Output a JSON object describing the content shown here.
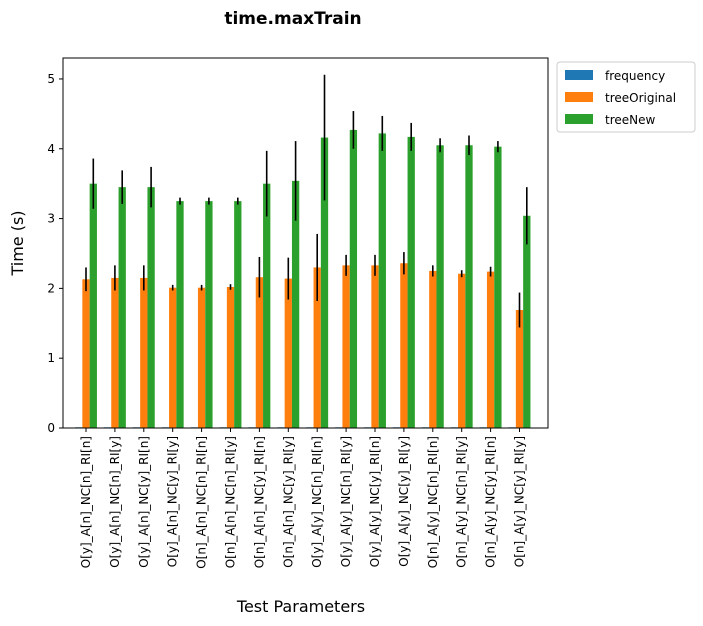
{
  "chart_data": {
    "type": "bar",
    "title": "time.maxTrain",
    "xlabel": "Test Parameters",
    "ylabel": "Time (s)",
    "ylim": [
      0,
      5.3
    ],
    "yticks": [
      0,
      1,
      2,
      3,
      4,
      5
    ],
    "grid": false,
    "legend_position": "outside-top-right",
    "categories": [
      "O[y]_A[n]_NC[n]_RI[n]",
      "O[y]_A[n]_NC[n]_RI[y]",
      "O[y]_A[n]_NC[y]_RI[n]",
      "O[y]_A[n]_NC[y]_RI[y]",
      "O[n]_A[n]_NC[n]_RI[n]",
      "O[n]_A[n]_NC[n]_RI[y]",
      "O[n]_A[n]_NC[y]_RI[n]",
      "O[n]_A[n]_NC[y]_RI[y]",
      "O[y]_A[y]_NC[n]_RI[n]",
      "O[y]_A[y]_NC[n]_RI[y]",
      "O[y]_A[y]_NC[y]_RI[n]",
      "O[y]_A[y]_NC[y]_RI[y]",
      "O[n]_A[y]_NC[n]_RI[n]",
      "O[n]_A[y]_NC[n]_RI[y]",
      "O[n]_A[y]_NC[y]_RI[n]",
      "O[n]_A[y]_NC[y]_RI[y]"
    ],
    "series": [
      {
        "name": "frequency",
        "color": "#1f77b4",
        "values": [
          0.01,
          0.01,
          0.01,
          0.01,
          0.01,
          0.01,
          0.01,
          0.01,
          0.01,
          0.01,
          0.01,
          0.01,
          0.01,
          0.01,
          0.01,
          0.01
        ],
        "errors": [
          0,
          0,
          0,
          0,
          0,
          0,
          0,
          0,
          0,
          0,
          0,
          0,
          0,
          0,
          0,
          0
        ]
      },
      {
        "name": "treeOriginal",
        "color": "#ff7f0e",
        "values": [
          2.13,
          2.15,
          2.15,
          2.01,
          2.01,
          2.02,
          2.16,
          2.14,
          2.3,
          2.33,
          2.33,
          2.36,
          2.25,
          2.21,
          2.24,
          1.69
        ],
        "errors": [
          0.17,
          0.18,
          0.18,
          0.04,
          0.04,
          0.04,
          0.29,
          0.3,
          0.48,
          0.15,
          0.15,
          0.16,
          0.08,
          0.05,
          0.07,
          0.25
        ]
      },
      {
        "name": "treeNew",
        "color": "#2ca02c",
        "values": [
          3.5,
          3.45,
          3.45,
          3.25,
          3.25,
          3.25,
          3.5,
          3.54,
          4.16,
          4.27,
          4.22,
          4.17,
          4.05,
          4.05,
          4.03,
          3.04
        ],
        "errors": [
          0.36,
          0.24,
          0.29,
          0.05,
          0.05,
          0.05,
          0.47,
          0.57,
          0.9,
          0.27,
          0.25,
          0.2,
          0.1,
          0.14,
          0.08,
          0.41
        ]
      }
    ]
  }
}
